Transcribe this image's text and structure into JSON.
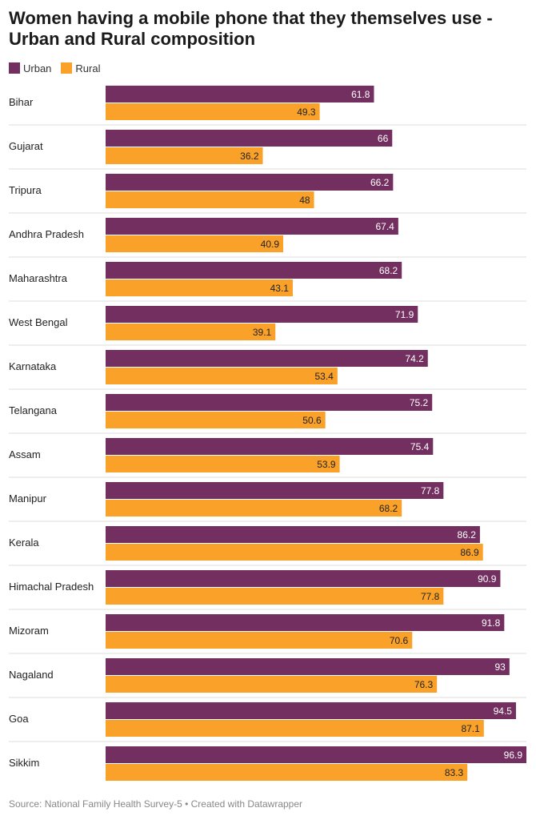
{
  "colors": {
    "urban": "#722f5f",
    "rural": "#f9a128",
    "divider": "#dddddd"
  },
  "chart_data": {
    "type": "bar",
    "orientation": "horizontal",
    "title": "Women having a mobile phone that they themselves use - Urban and Rural composition",
    "xlim": [
      0,
      100
    ],
    "grid": false,
    "legend_position": "top-left",
    "categories": [
      "Bihar",
      "Gujarat",
      "Tripura",
      "Andhra Pradesh",
      "Maharashtra",
      "West Bengal",
      "Karnataka",
      "Telangana",
      "Assam",
      "Manipur",
      "Kerala",
      "Himachal Pradesh",
      "Mizoram",
      "Nagaland",
      "Goa",
      "Sikkim"
    ],
    "series": [
      {
        "name": "Urban",
        "values": [
          61.8,
          66,
          66.2,
          67.4,
          68.2,
          71.9,
          74.2,
          75.2,
          75.4,
          77.8,
          86.2,
          90.9,
          91.8,
          93,
          94.5,
          96.9
        ]
      },
      {
        "name": "Rural",
        "values": [
          49.3,
          36.2,
          48,
          40.9,
          43.1,
          39.1,
          53.4,
          50.6,
          53.9,
          68.2,
          86.9,
          77.8,
          70.6,
          76.3,
          87.1,
          83.3
        ]
      }
    ]
  },
  "source": "Source: National Family Health Survey-5 • Created with Datawrapper"
}
